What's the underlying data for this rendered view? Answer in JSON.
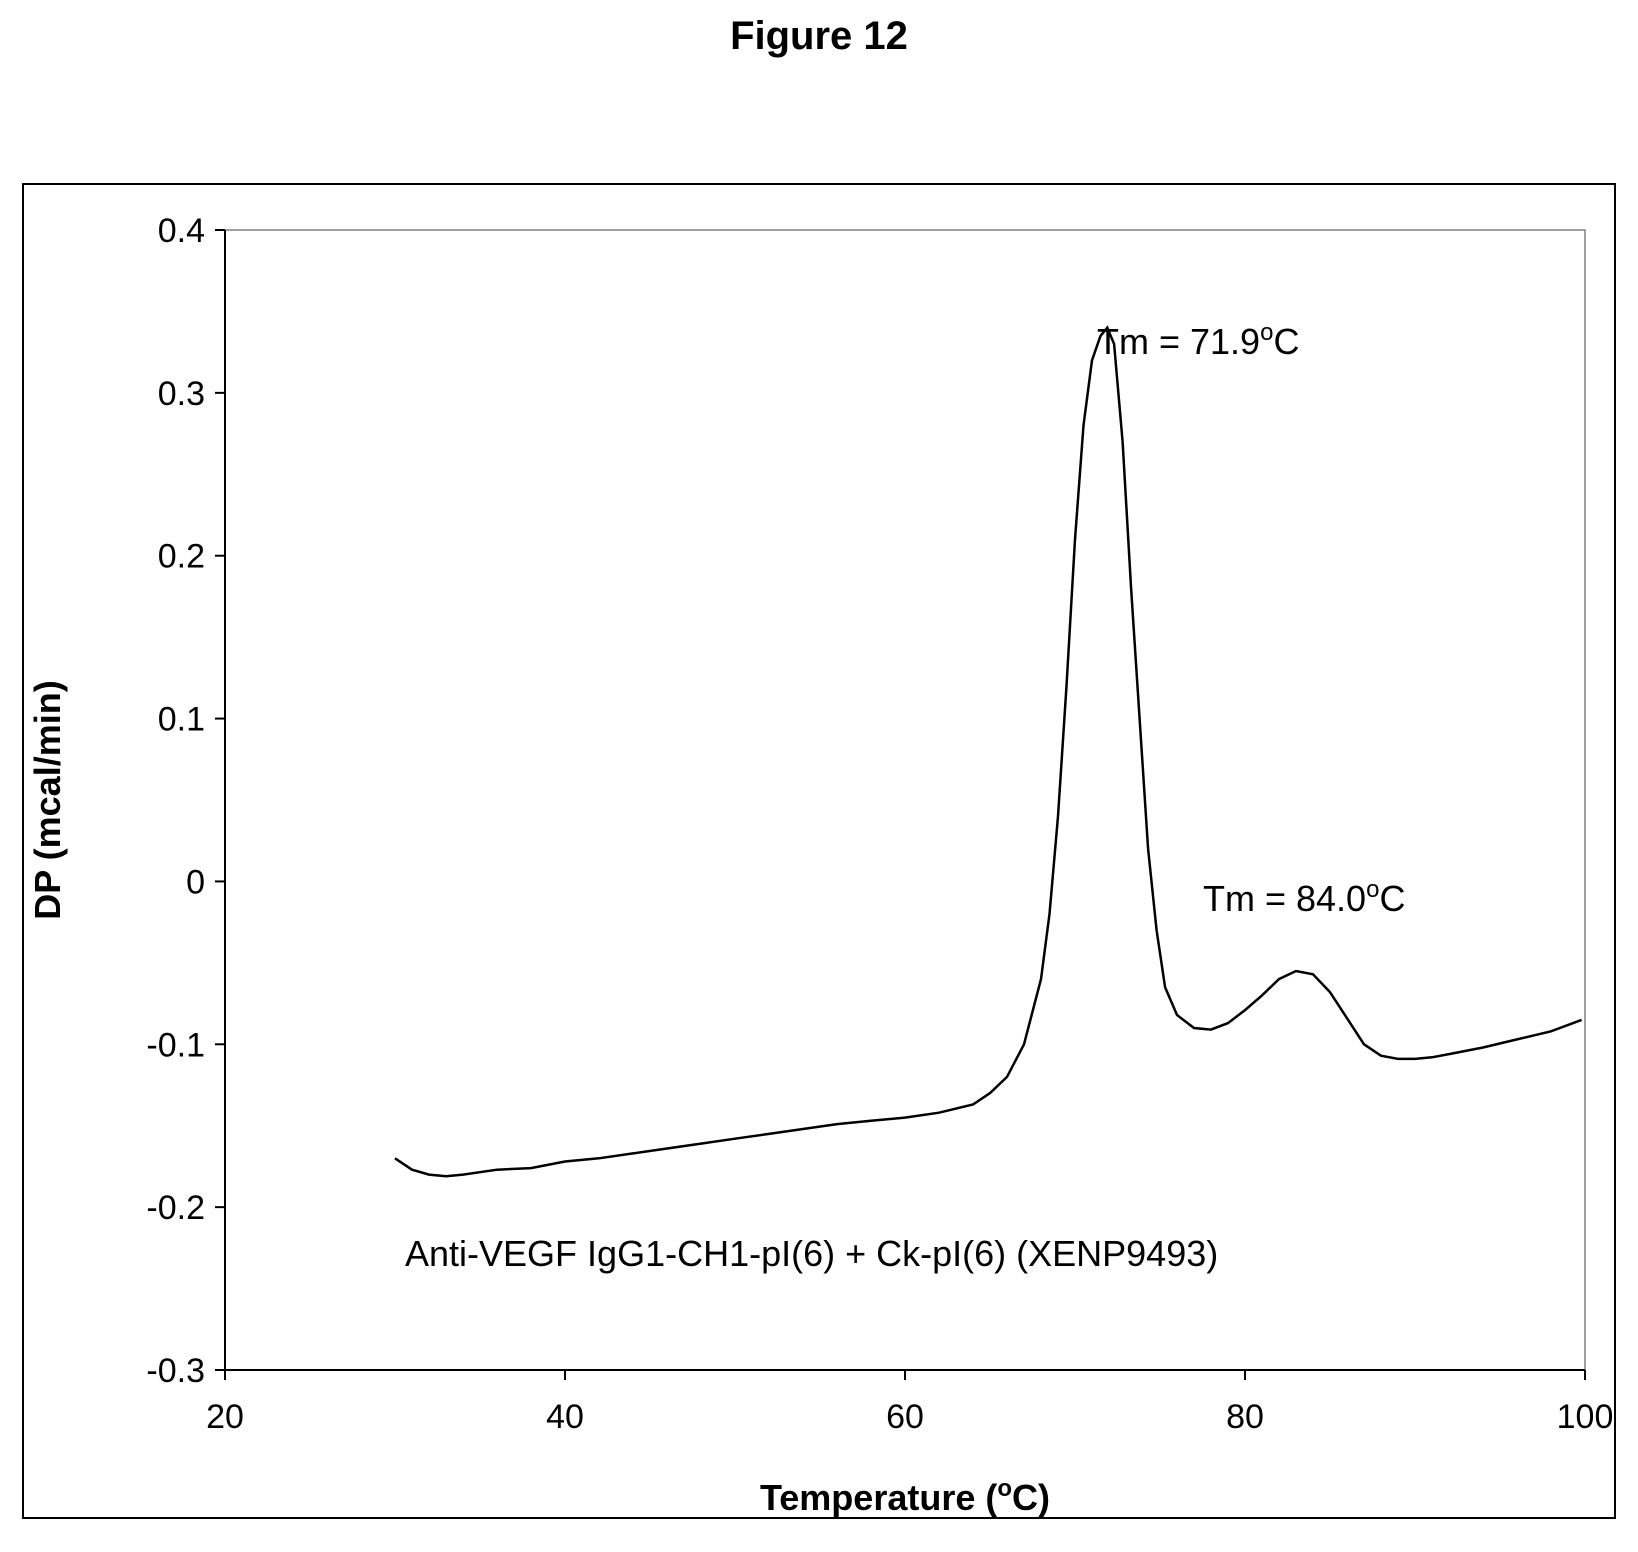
{
  "figure_title": "Figure 12",
  "chart_data": {
    "type": "line",
    "xlabel_parts": [
      "Temperature (",
      "o",
      "C)"
    ],
    "ylabel": "DP (mcal/min)",
    "xlim": [
      20,
      100
    ],
    "ylim": [
      -0.3,
      0.4
    ],
    "x_ticks": [
      20,
      40,
      60,
      80,
      100
    ],
    "y_ticks": [
      0.4,
      0.3,
      0.2,
      0.1,
      0,
      -0.1,
      -0.2,
      -0.3
    ],
    "y_tick_labels": [
      "0.4",
      "0.3",
      "0.2",
      "0.1",
      "0",
      "-0.1",
      "-0.2",
      "-0.3"
    ],
    "grid": false,
    "series": [
      {
        "x": [
          30,
          31,
          32,
          33,
          34,
          36,
          38,
          40,
          42,
          44,
          46,
          48,
          50,
          52,
          54,
          56,
          58,
          60,
          62,
          64,
          65,
          66,
          67,
          68,
          68.5,
          69,
          69.5,
          70,
          70.5,
          71,
          71.5,
          71.9,
          72.3,
          72.8,
          73.3,
          73.8,
          74.3,
          74.8,
          75.3,
          76,
          77,
          78,
          79,
          80,
          81,
          82,
          83,
          84,
          85,
          86,
          87,
          88,
          89,
          90,
          91,
          92,
          94,
          96,
          98,
          99.8
        ],
        "y": [
          -0.17,
          -0.177,
          -0.18,
          -0.181,
          -0.18,
          -0.177,
          -0.176,
          -0.172,
          -0.17,
          -0.167,
          -0.164,
          -0.161,
          -0.158,
          -0.155,
          -0.152,
          -0.149,
          -0.147,
          -0.145,
          -0.142,
          -0.137,
          -0.13,
          -0.12,
          -0.1,
          -0.06,
          -0.02,
          0.04,
          0.12,
          0.21,
          0.28,
          0.32,
          0.335,
          0.34,
          0.33,
          0.27,
          0.18,
          0.1,
          0.02,
          -0.03,
          -0.065,
          -0.082,
          -0.09,
          -0.091,
          -0.087,
          -0.079,
          -0.07,
          -0.06,
          -0.055,
          -0.057,
          -0.068,
          -0.084,
          -0.1,
          -0.107,
          -0.109,
          -0.109,
          -0.108,
          -0.106,
          -0.102,
          -0.097,
          -0.092,
          -0.085
        ]
      }
    ],
    "annotations": [
      {
        "text": "Tm = 71.9",
        "sup": "o",
        "unit": "C",
        "x": 71.9,
        "y": 0.34
      },
      {
        "text": "Tm = 84.0",
        "sup": "o",
        "unit": "C",
        "x": 84.0,
        "y": -0.055
      }
    ],
    "sample_label": "Anti-VEGF IgG1-CH1-pI(6) + Ck-pI(6) (XENP9493)"
  }
}
